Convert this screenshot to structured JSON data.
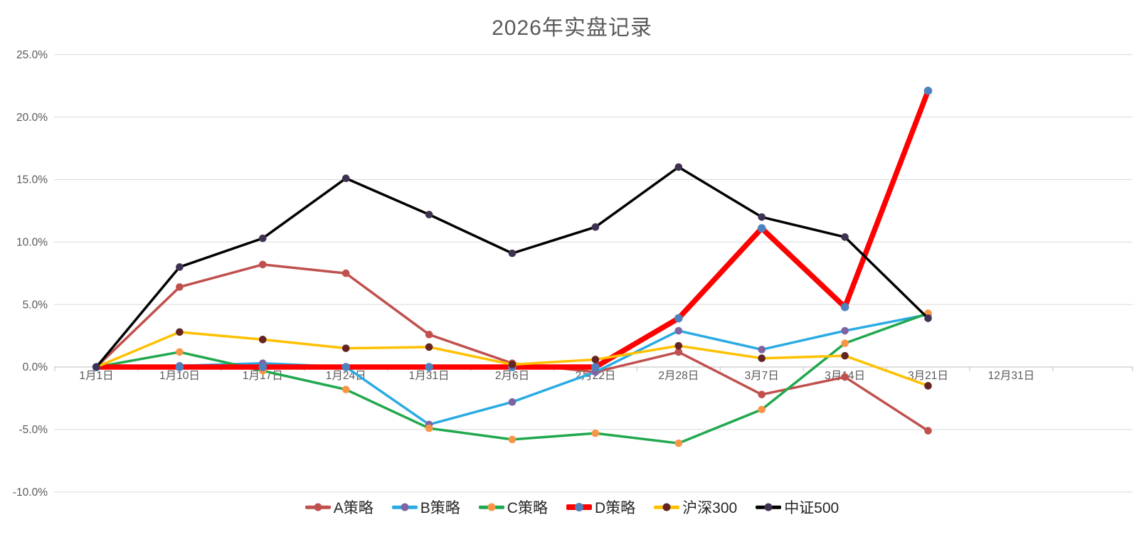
{
  "title": "2026年实盘记录",
  "chart_data": {
    "type": "line",
    "title": "2026年实盘记录",
    "categories": [
      "1月1日",
      "1月10日",
      "1月17日",
      "1月24日",
      "1月31日",
      "2月6日",
      "2月22日",
      "2月28日",
      "3月7日",
      "3月14日",
      "3月21日",
      "12月31日"
    ],
    "series": [
      {
        "name": "A策略",
        "line_color": "#C0504D",
        "marker_color": "#C0504D",
        "line_width": 3.5,
        "values": [
          0,
          6.4,
          8.2,
          7.5,
          2.6,
          0.3,
          -0.4,
          1.2,
          -2.2,
          -0.8,
          -5.1,
          null
        ]
      },
      {
        "name": "B策略",
        "line_color": "#29ABE2",
        "marker_color": "#8064A2",
        "line_width": 3.5,
        "values": [
          0,
          0.1,
          0.3,
          0,
          -4.6,
          -2.8,
          -0.4,
          2.9,
          1.4,
          2.9,
          4.2,
          null
        ]
      },
      {
        "name": "C策略",
        "line_color": "#21A84E",
        "marker_color": "#F79646",
        "line_width": 3.5,
        "values": [
          0,
          1.2,
          -0.3,
          -1.8,
          -4.9,
          -5.8,
          -5.3,
          -6.1,
          -3.4,
          1.9,
          4.3,
          null
        ]
      },
      {
        "name": "D策略",
        "line_color": "#FF0000",
        "marker_color": "#4F81BD",
        "line_width": 7.5,
        "values": [
          0,
          0,
          0,
          0,
          0,
          0,
          0,
          3.9,
          11.1,
          4.8,
          22.1,
          null
        ]
      },
      {
        "name": "沪深300",
        "line_color": "#FFC000",
        "marker_color": "#632423",
        "line_width": 3.5,
        "values": [
          0,
          2.8,
          2.2,
          1.5,
          1.6,
          0.2,
          0.6,
          1.7,
          0.7,
          0.9,
          -1.5,
          null
        ]
      },
      {
        "name": "中证500",
        "line_color": "#000000",
        "marker_color": "#3F3151",
        "line_width": 3.5,
        "values": [
          0,
          8.0,
          10.3,
          15.1,
          12.2,
          9.1,
          11.2,
          16.0,
          12.0,
          10.4,
          3.9,
          null
        ]
      }
    ],
    "y_axis": {
      "min": -10,
      "max": 25,
      "step": 5,
      "tick_labels": [
        "25.0%",
        "20.0%",
        "15.0%",
        "10.0%",
        "5.0%",
        "0.0%",
        "-5.0%",
        "-10.0%"
      ]
    },
    "ylim": [
      -10,
      25
    ],
    "grid": true,
    "legend_position": "bottom",
    "legend": [
      "A策略",
      "B策略",
      "C策略",
      "D策略",
      "沪深300",
      "中证500"
    ]
  },
  "colors": {
    "background": "#FFFFFF",
    "title_text": "#595959",
    "axis_label_text": "#595959",
    "legend_text": "#262626",
    "gridline": "#D9D9D9",
    "axis_line": "#BFBFBF"
  }
}
